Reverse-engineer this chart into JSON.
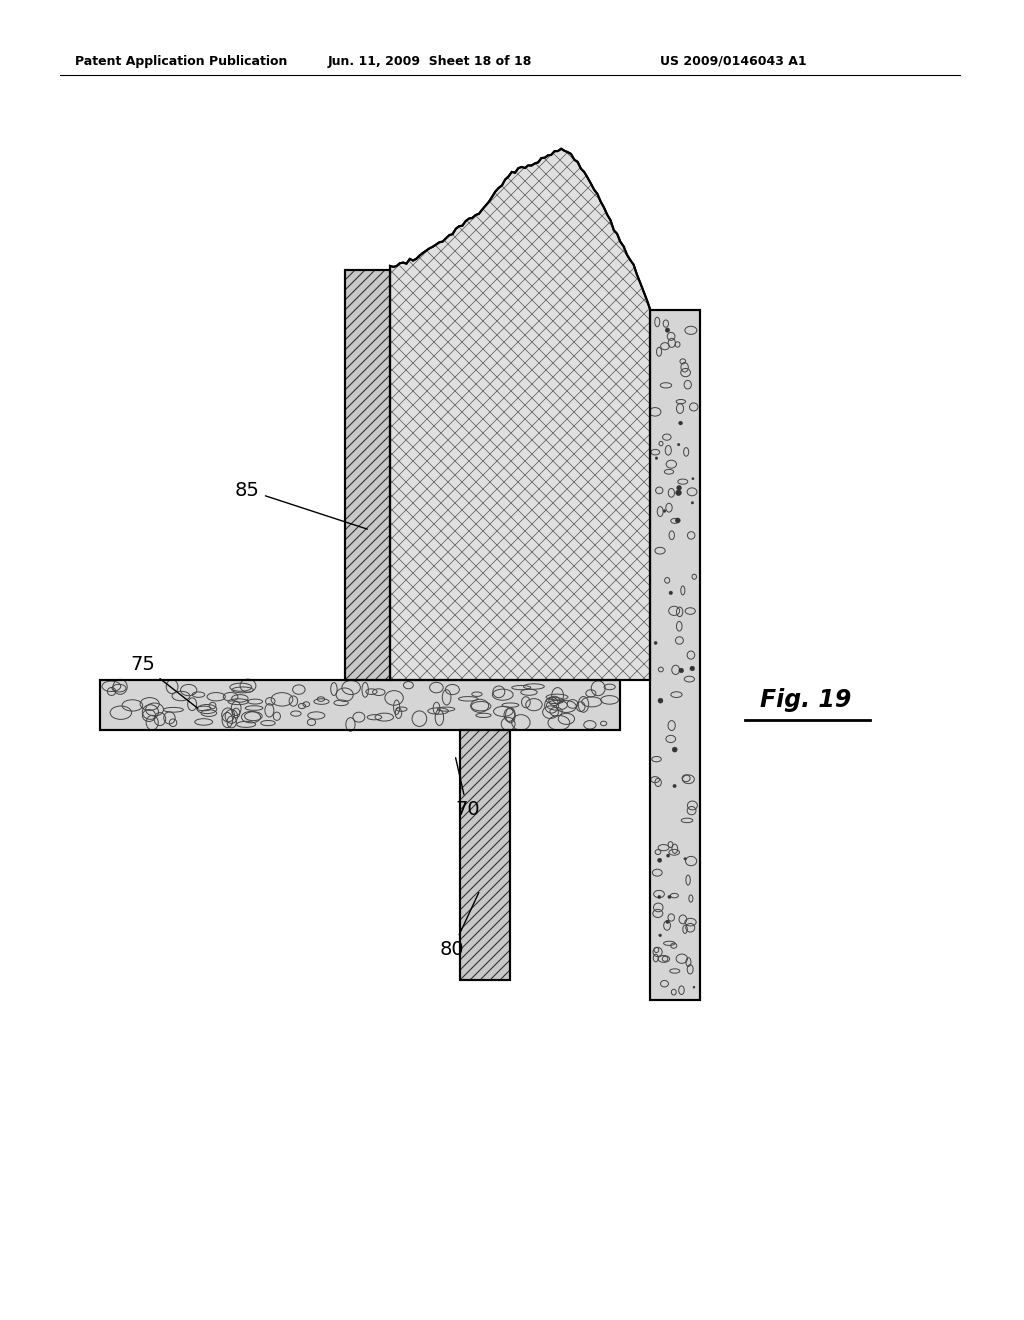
{
  "header_left": "Patent Application Publication",
  "header_mid": "Jun. 11, 2009  Sheet 18 of 18",
  "header_right": "US 2009/0146043 A1",
  "fig_label": "Fig. 19",
  "bg_color": "#ffffff",
  "line_color": "#000000"
}
